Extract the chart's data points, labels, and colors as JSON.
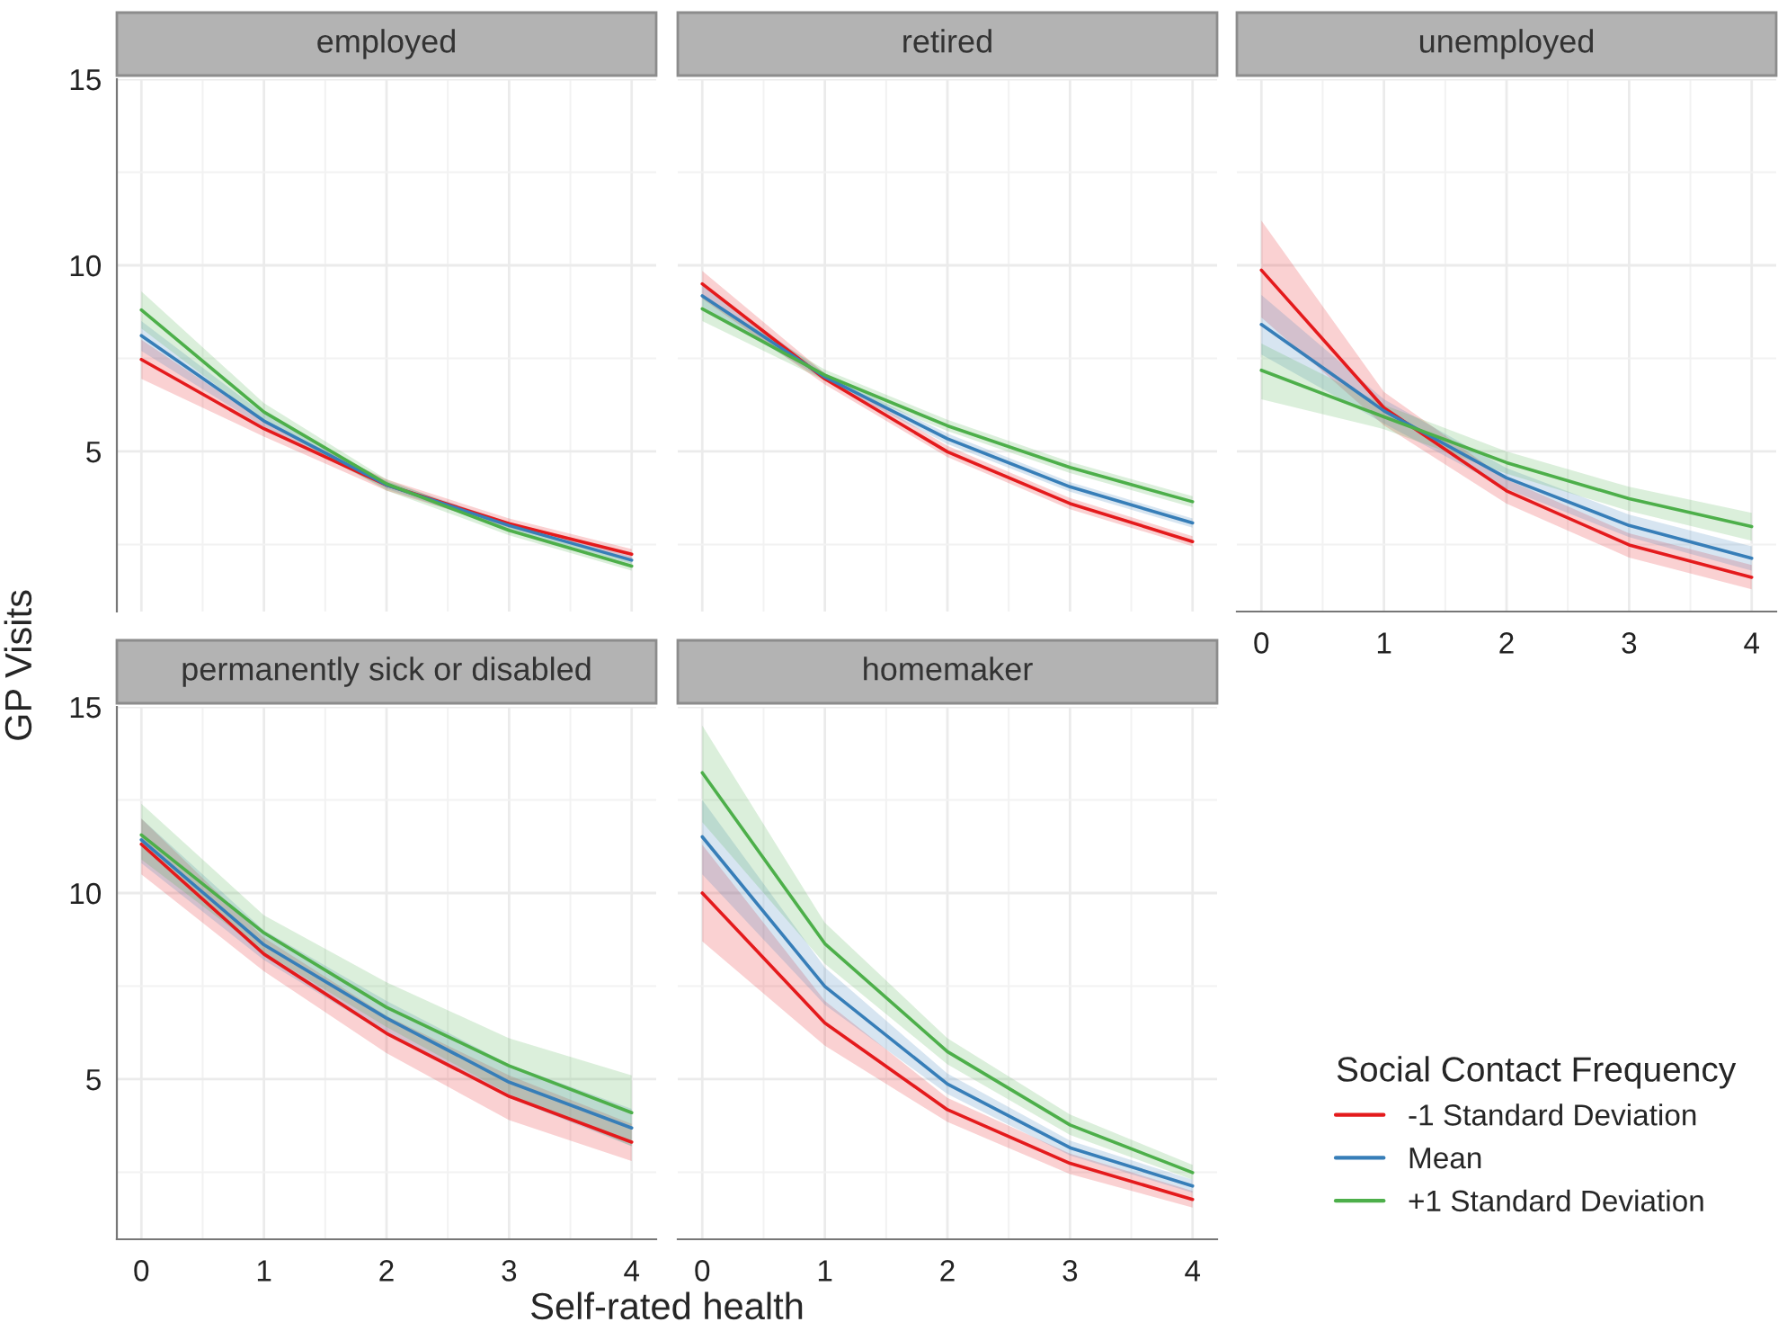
{
  "chart_data": [
    {
      "type": "line",
      "title": "employed",
      "ylabel": "GP Visits",
      "legend_title": "Social Contact Frequency",
      "legend": "right",
      "x": [
        0,
        1,
        2,
        3,
        4
      ],
      "xlim": [
        -0.2,
        4.2
      ],
      "xticks": [
        0,
        1,
        2,
        3,
        4
      ],
      "ylim": [
        0.7,
        15
      ],
      "yticks": [
        5,
        10,
        15
      ],
      "grid": true,
      "tick_labels": "y",
      "series": [
        {
          "name": "-1 Standard Deviation",
          "color": "#e41a1c",
          "values": [
            7.47,
            5.61,
            4.1,
            3.06,
            2.24
          ],
          "lower": [
            6.95,
            5.4,
            3.95,
            2.95,
            2.1
          ],
          "upper": [
            8.0,
            5.8,
            4.25,
            3.2,
            2.38
          ]
        },
        {
          "name": "Mean",
          "color": "#377eb8",
          "values": [
            8.11,
            5.82,
            4.1,
            3.01,
            2.08
          ],
          "lower": [
            7.7,
            5.65,
            4.0,
            2.9,
            1.98
          ],
          "upper": [
            8.5,
            6.0,
            4.2,
            3.1,
            2.18
          ]
        },
        {
          "name": "+1 Standard Deviation",
          "color": "#4daf4a",
          "values": [
            8.8,
            6.06,
            4.13,
            2.88,
            1.92
          ],
          "lower": [
            8.3,
            5.8,
            3.95,
            2.75,
            1.8
          ],
          "upper": [
            9.3,
            6.3,
            4.25,
            3.0,
            2.05
          ]
        }
      ]
    },
    {
      "type": "line",
      "title": "retired",
      "x": [
        0,
        1,
        2,
        3,
        4
      ],
      "xlim": [
        -0.2,
        4.2
      ],
      "xticks": [
        0,
        1,
        2,
        3,
        4
      ],
      "ylim": [
        0.7,
        15
      ],
      "yticks": [
        5,
        10,
        15
      ],
      "grid": true,
      "tick_labels": false,
      "series": [
        {
          "color": "#e41a1c",
          "values": [
            9.5,
            6.95,
            4.99,
            3.6,
            2.58
          ],
          "lower": [
            9.1,
            6.8,
            4.85,
            3.45,
            2.45
          ],
          "upper": [
            9.85,
            7.1,
            5.15,
            3.75,
            2.72
          ]
        },
        {
          "color": "#377eb8",
          "values": [
            9.18,
            7.0,
            5.34,
            4.05,
            3.08
          ],
          "lower": [
            8.9,
            6.9,
            5.2,
            3.92,
            2.95
          ],
          "upper": [
            9.45,
            7.1,
            5.48,
            4.18,
            3.2
          ]
        },
        {
          "color": "#4daf4a",
          "values": [
            8.83,
            7.05,
            5.69,
            4.57,
            3.65
          ],
          "lower": [
            8.5,
            6.9,
            5.55,
            4.42,
            3.5
          ],
          "upper": [
            9.15,
            7.2,
            5.85,
            4.72,
            3.8
          ]
        }
      ]
    },
    {
      "type": "line",
      "title": "unemployed",
      "x": [
        0,
        1,
        2,
        3,
        4
      ],
      "xlim": [
        -0.2,
        4.2
      ],
      "xticks": [
        0,
        1,
        2,
        3,
        4
      ],
      "ylim": [
        0.7,
        15
      ],
      "yticks": [
        5,
        10,
        15
      ],
      "grid": true,
      "tick_labels": "x",
      "series": [
        {
          "color": "#e41a1c",
          "values": [
            9.87,
            6.17,
            3.94,
            2.49,
            1.62
          ],
          "lower": [
            8.6,
            5.7,
            3.6,
            2.15,
            1.3
          ],
          "upper": [
            11.2,
            6.6,
            4.25,
            2.8,
            1.95
          ]
        },
        {
          "color": "#377eb8",
          "values": [
            8.41,
            6.09,
            4.29,
            3.01,
            2.13
          ],
          "lower": [
            7.6,
            5.75,
            4.0,
            2.7,
            1.8
          ],
          "upper": [
            9.2,
            6.4,
            4.55,
            3.3,
            2.45
          ]
        },
        {
          "color": "#4daf4a",
          "values": [
            7.18,
            5.93,
            4.7,
            3.73,
            2.98
          ],
          "lower": [
            6.4,
            5.6,
            4.4,
            3.4,
            2.6
          ],
          "upper": [
            7.9,
            6.25,
            5.0,
            4.05,
            3.35
          ]
        }
      ]
    },
    {
      "type": "line",
      "title": "permanently sick or disabled",
      "x": [
        0,
        1,
        2,
        3,
        4
      ],
      "xlim": [
        -0.2,
        4.2
      ],
      "xticks": [
        0,
        1,
        2,
        3,
        4
      ],
      "ylim": [
        0.7,
        15
      ],
      "yticks": [
        5,
        10,
        15
      ],
      "grid": true,
      "series": [
        {
          "color": "#e41a1c",
          "values": [
            11.31,
            8.36,
            6.23,
            4.54,
            3.31
          ],
          "lower": [
            10.5,
            7.9,
            5.7,
            3.9,
            2.8
          ],
          "upper": [
            12.0,
            8.8,
            6.7,
            5.1,
            3.8
          ]
        },
        {
          "color": "#377eb8",
          "values": [
            11.43,
            8.61,
            6.64,
            4.92,
            3.69
          ],
          "lower": [
            10.8,
            8.2,
            6.2,
            4.5,
            3.2
          ],
          "upper": [
            12.0,
            9.0,
            7.1,
            5.4,
            4.2
          ]
        },
        {
          "color": "#4daf4a",
          "values": [
            11.56,
            8.93,
            6.93,
            5.36,
            4.1
          ],
          "lower": [
            10.9,
            8.4,
            6.4,
            4.6,
            3.2
          ],
          "upper": [
            12.4,
            9.4,
            7.6,
            6.1,
            5.1
          ]
        }
      ]
    },
    {
      "type": "line",
      "title": "homemaker",
      "xlabel": "Self-rated health",
      "x": [
        0,
        1,
        2,
        3,
        4
      ],
      "xlim": [
        -0.2,
        4.2
      ],
      "xticks": [
        0,
        1,
        2,
        3,
        4
      ],
      "ylim": [
        0.7,
        15
      ],
      "yticks": [
        5,
        10,
        15
      ],
      "grid": true,
      "tick_labels": "x",
      "series": [
        {
          "color": "#e41a1c",
          "values": [
            10.0,
            6.51,
            4.18,
            2.74,
            1.77
          ],
          "lower": [
            8.7,
            5.9,
            3.85,
            2.45,
            1.55
          ],
          "upper": [
            11.3,
            7.1,
            4.5,
            3.0,
            2.0
          ]
        },
        {
          "color": "#377eb8",
          "values": [
            11.51,
            7.49,
            4.87,
            3.16,
            2.13
          ],
          "lower": [
            10.5,
            7.0,
            4.6,
            2.95,
            1.95
          ],
          "upper": [
            12.5,
            8.0,
            5.15,
            3.35,
            2.3
          ]
        },
        {
          "color": "#4daf4a",
          "values": [
            13.23,
            8.64,
            5.74,
            3.77,
            2.49
          ],
          "lower": [
            11.9,
            8.1,
            5.4,
            3.5,
            2.3
          ],
          "upper": [
            14.5,
            9.2,
            6.1,
            4.05,
            2.7
          ]
        }
      ]
    }
  ]
}
